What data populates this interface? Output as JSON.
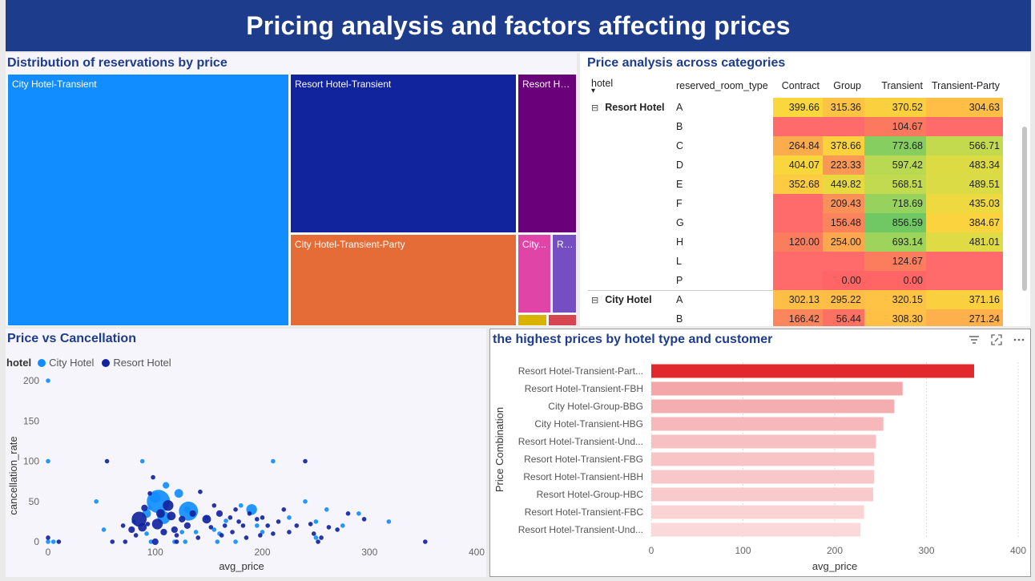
{
  "page": {
    "title": "Pricing analysis and factors affecting prices"
  },
  "treemap": {
    "title": "Distribution of reservations by price",
    "cells": [
      {
        "label": "City Hotel-Transient",
        "color": "#118dff"
      },
      {
        "label": "Resort Hotel-Transient",
        "color": "#12239e"
      },
      {
        "label": "Resort Ho...",
        "color": "#6b007b"
      },
      {
        "label": "City Hotel-Transient-Party",
        "color": "#e66c37"
      },
      {
        "label": "City...",
        "color": "#e044a7"
      },
      {
        "label": "Re...",
        "color": "#744ec2"
      },
      {
        "label": "",
        "color": "#d9b300"
      },
      {
        "label": "",
        "color": "#d64550"
      }
    ]
  },
  "matrix": {
    "title": "Price analysis across categories",
    "columns": [
      "hotel",
      "reserved_room_type",
      "Contract",
      "Group",
      "Transient",
      "Transient-Party"
    ],
    "groups": [
      {
        "name": "Resort Hotel",
        "rows": [
          {
            "room": "A",
            "values": [
              "399.66",
              "315.36",
              "370.52",
              "304.63"
            ]
          },
          {
            "room": "B",
            "values": [
              "",
              "",
              "104.67",
              ""
            ]
          },
          {
            "room": "C",
            "values": [
              "264.84",
              "378.66",
              "773.68",
              "566.71"
            ]
          },
          {
            "room": "D",
            "values": [
              "404.07",
              "223.33",
              "597.42",
              "483.34"
            ]
          },
          {
            "room": "E",
            "values": [
              "352.68",
              "449.82",
              "568.51",
              "489.51"
            ]
          },
          {
            "room": "F",
            "values": [
              "",
              "209.43",
              "718.69",
              "435.03"
            ]
          },
          {
            "room": "G",
            "values": [
              "",
              "156.48",
              "856.59",
              "384.67"
            ]
          },
          {
            "room": "H",
            "values": [
              "120.00",
              "254.00",
              "693.14",
              "481.01"
            ]
          },
          {
            "room": "L",
            "values": [
              "",
              "",
              "124.67",
              ""
            ]
          },
          {
            "room": "P",
            "values": [
              "",
              "0.00",
              "0.00",
              ""
            ]
          }
        ]
      },
      {
        "name": "City Hotel",
        "rows": [
          {
            "room": "A",
            "values": [
              "302.13",
              "295.22",
              "320.15",
              "371.16"
            ]
          },
          {
            "room": "B",
            "values": [
              "166.42",
              "56.44",
              "308.30",
              "271.24"
            ]
          }
        ]
      }
    ]
  },
  "scatter": {
    "title": "Price vs Cancellation",
    "legend_title": "hotel",
    "legend": [
      {
        "name": "City Hotel",
        "color": "#118dff"
      },
      {
        "name": "Resort Hotel",
        "color": "#12239e"
      }
    ]
  },
  "bars": {
    "title": "the highest prices by hotel type and customer"
  },
  "chart_data": [
    {
      "type": "scatter",
      "title": "Price vs Cancellation",
      "xlabel": "avg_price",
      "ylabel": "cancellation_rate",
      "xlim": [
        0,
        400
      ],
      "ylim": [
        0,
        200
      ],
      "xticks": [
        "0",
        "100",
        "200",
        "300",
        "400"
      ],
      "yticks": [
        "0",
        "50",
        "100",
        "150",
        "200"
      ],
      "legend_placement": "top-left",
      "series": [
        {
          "name": "City Hotel",
          "color": "#118dff",
          "points": [
            [
              0,
              200,
              1
            ],
            [
              0,
              100,
              1
            ],
            [
              0,
              0,
              1
            ],
            [
              5,
              0,
              1
            ],
            [
              45,
              50,
              1
            ],
            [
              52,
              15,
              1
            ],
            [
              80,
              25,
              1
            ],
            [
              88,
              100,
              1
            ],
            [
              92,
              35,
              3
            ],
            [
              92,
              10,
              1
            ],
            [
              95,
              42,
              1
            ],
            [
              96,
              0,
              1
            ],
            [
              100,
              55,
              4
            ],
            [
              103,
              50,
              10
            ],
            [
              108,
              30,
              5
            ],
            [
              110,
              70,
              2
            ],
            [
              118,
              0,
              1
            ],
            [
              122,
              60,
              3
            ],
            [
              125,
              12,
              1
            ],
            [
              128,
              0,
              1
            ],
            [
              130,
              40,
              2
            ],
            [
              131,
              38,
              8
            ],
            [
              138,
              12,
              1
            ],
            [
              148,
              30,
              1
            ],
            [
              155,
              15,
              1
            ],
            [
              158,
              0,
              1
            ],
            [
              166,
              26,
              1
            ],
            [
              175,
              0,
              1
            ],
            [
              190,
              40,
              4
            ],
            [
              195,
              20,
              1
            ],
            [
              210,
              100,
              1
            ],
            [
              225,
              30,
              1
            ],
            [
              240,
              50,
              1
            ],
            [
              250,
              25,
              1
            ],
            [
              260,
              40,
              1
            ],
            [
              275,
              20,
              1
            ],
            [
              290,
              35,
              1
            ],
            [
              318,
              25,
              1
            ],
            [
              250,
              5,
              1
            ],
            [
              160,
              10,
              1
            ],
            [
              180,
              45,
              1
            ],
            [
              200,
              12,
              1
            ]
          ]
        },
        {
          "name": "Resort Hotel",
          "color": "#12239e",
          "points": [
            [
              0,
              5,
              1
            ],
            [
              10,
              0,
              1
            ],
            [
              55,
              100,
              1
            ],
            [
              60,
              0,
              1
            ],
            [
              70,
              20,
              1
            ],
            [
              72,
              0,
              1
            ],
            [
              78,
              15,
              2
            ],
            [
              82,
              8,
              1
            ],
            [
              85,
              28,
              6
            ],
            [
              88,
              18,
              3
            ],
            [
              90,
              42,
              2
            ],
            [
              93,
              22,
              1
            ],
            [
              95,
              60,
              1
            ],
            [
              98,
              80,
              1
            ],
            [
              100,
              0,
              2
            ],
            [
              102,
              22,
              4
            ],
            [
              105,
              35,
              3
            ],
            [
              108,
              12,
              2
            ],
            [
              112,
              45,
              4
            ],
            [
              115,
              32,
              3
            ],
            [
              118,
              15,
              2
            ],
            [
              120,
              8,
              1
            ],
            [
              125,
              28,
              2
            ],
            [
              130,
              20,
              2
            ],
            [
              135,
              35,
              2
            ],
            [
              140,
              5,
              1
            ],
            [
              142,
              62,
              1
            ],
            [
              148,
              28,
              3
            ],
            [
              152,
              18,
              1
            ],
            [
              155,
              45,
              1
            ],
            [
              160,
              35,
              2
            ],
            [
              162,
              8,
              1
            ],
            [
              165,
              20,
              1
            ],
            [
              170,
              30,
              1
            ],
            [
              172,
              12,
              1
            ],
            [
              175,
              40,
              1
            ],
            [
              178,
              25,
              1
            ],
            [
              182,
              20,
              1
            ],
            [
              185,
              5,
              1
            ],
            [
              188,
              35,
              1
            ],
            [
              195,
              28,
              1
            ],
            [
              198,
              8,
              1
            ],
            [
              200,
              30,
              1
            ],
            [
              205,
              20,
              1
            ],
            [
              210,
              10,
              1
            ],
            [
              215,
              25,
              1
            ],
            [
              220,
              40,
              1
            ],
            [
              225,
              12,
              1
            ],
            [
              232,
              20,
              1
            ],
            [
              240,
              100,
              1
            ],
            [
              245,
              22,
              1
            ],
            [
              248,
              10,
              1
            ],
            [
              252,
              0,
              1
            ],
            [
              255,
              5,
              1
            ],
            [
              262,
              18,
              1
            ],
            [
              270,
              15,
              1
            ],
            [
              280,
              35,
              1
            ],
            [
              295,
              28,
              1
            ],
            [
              352,
              0,
              1
            ],
            [
              120,
              0,
              1
            ]
          ]
        }
      ]
    },
    {
      "type": "bar",
      "orientation": "horizontal",
      "title": "the highest prices by hotel type and customer",
      "xlabel": "avg_price",
      "ylabel": "Price Combination",
      "xlim": [
        0,
        400
      ],
      "xticks": [
        "0",
        "100",
        "200",
        "300",
        "400"
      ],
      "categories": [
        "Resort Hotel-Transient-Part...",
        "Resort Hotel-Transient-FBH",
        "City Hotel-Group-BBG",
        "City Hotel-Transient-HBG",
        "Resort Hotel-Transient-Und...",
        "Resort Hotel-Transient-FBG",
        "Resort Hotel-Transient-HBH",
        "Resort Hotel-Group-HBC",
        "Resort Hotel-Transient-FBC",
        "Resort Hotel-Transient-Und..."
      ],
      "values": [
        352,
        274,
        265,
        253,
        245,
        243,
        243,
        242,
        232,
        228
      ],
      "colors": [
        "#e0282d",
        "#f3a7a9",
        "#f4aeb0",
        "#f6b8ba",
        "#f7c0c2",
        "#f8c4c6",
        "#f8c7c9",
        "#f9cacb",
        "#fad3d4",
        "#fbd8d9"
      ]
    }
  ]
}
